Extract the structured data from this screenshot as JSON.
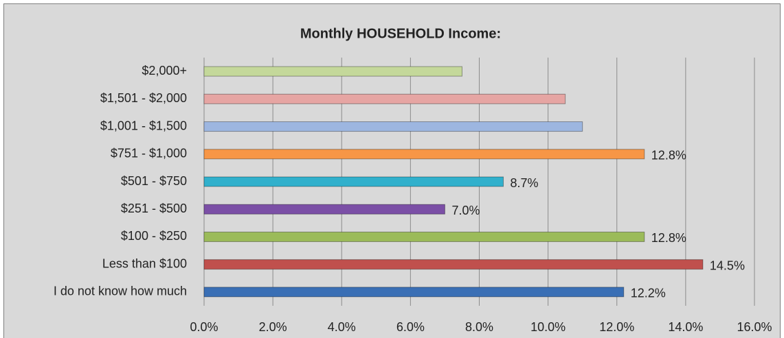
{
  "chart_data": {
    "type": "hbar",
    "title": "Monthly HOUSEHOLD Income:",
    "categories": [
      "$2,000+",
      "$1,501 - $2,000",
      "$1,001 - $1,500",
      "$751 - $1,000",
      "$501 - $750",
      "$251 - $500",
      "$100 - $250",
      "Less than $100",
      "I do not know how much"
    ],
    "values": [
      7.5,
      10.5,
      11.0,
      12.8,
      8.7,
      7.0,
      12.8,
      14.5,
      12.2
    ],
    "value_labels": [
      null,
      null,
      null,
      "12.8%",
      "8.7%",
      "7.0%",
      "12.8%",
      "14.5%",
      "12.2%"
    ],
    "colors": [
      "#c4d89a",
      "#e6a5a3",
      "#9db6e0",
      "#f79646",
      "#31b0cc",
      "#7b4fa6",
      "#9bbb59",
      "#c0504d",
      "#3a6fb5"
    ],
    "xlim": [
      0,
      16
    ],
    "xticks": [
      {
        "value": 0,
        "label": "0.0%"
      },
      {
        "value": 2,
        "label": "2.0%"
      },
      {
        "value": 4,
        "label": "4.0%"
      },
      {
        "value": 6,
        "label": "6.0%"
      },
      {
        "value": 8,
        "label": "8.0%"
      },
      {
        "value": 10,
        "label": "10.0%"
      },
      {
        "value": 12,
        "label": "12.0%"
      },
      {
        "value": 14,
        "label": "14.0%"
      },
      {
        "value": 16,
        "label": "16.0%"
      }
    ],
    "grid": true
  }
}
